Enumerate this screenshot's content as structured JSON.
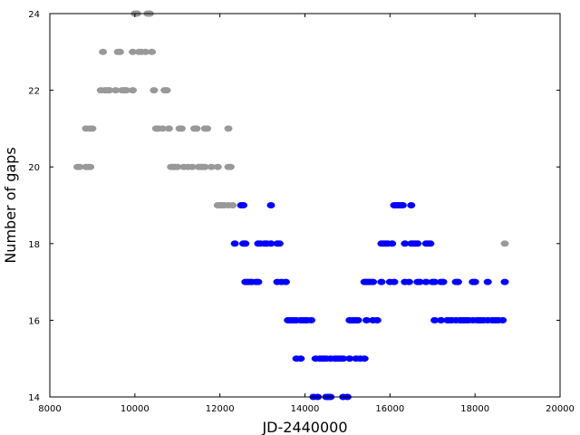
{
  "chart_data": {
    "type": "scatter",
    "title": "",
    "xlabel": "JD-2440000",
    "ylabel": "Number of gaps",
    "xlim": [
      8000,
      20000
    ],
    "ylim": [
      14,
      24
    ],
    "xticks": [
      8000,
      10000,
      12000,
      14000,
      16000,
      18000,
      20000
    ],
    "yticks": [
      14,
      16,
      18,
      20,
      22,
      24
    ],
    "grid": false,
    "legend": "none",
    "series": [
      {
        "color": "#999999",
        "points": [
          [
            8650,
            20
          ],
          [
            8700,
            20
          ],
          [
            8850,
            20
          ],
          [
            8900,
            20
          ],
          [
            8950,
            20
          ],
          [
            8850,
            21
          ],
          [
            8950,
            21
          ],
          [
            9000,
            21
          ],
          [
            9200,
            22
          ],
          [
            9300,
            22
          ],
          [
            9350,
            22
          ],
          [
            9400,
            22
          ],
          [
            9550,
            22
          ],
          [
            9700,
            22
          ],
          [
            9750,
            22
          ],
          [
            9800,
            22
          ],
          [
            9950,
            22
          ],
          [
            9250,
            23
          ],
          [
            9600,
            23
          ],
          [
            9650,
            23
          ],
          [
            9950,
            23
          ],
          [
            10100,
            23
          ],
          [
            10150,
            23
          ],
          [
            10250,
            23
          ],
          [
            10400,
            23
          ],
          [
            10000,
            24
          ],
          [
            10050,
            24
          ],
          [
            10300,
            24
          ],
          [
            10350,
            24
          ],
          [
            10450,
            22
          ],
          [
            10700,
            22
          ],
          [
            10750,
            22
          ],
          [
            10500,
            21
          ],
          [
            10550,
            21
          ],
          [
            10650,
            21
          ],
          [
            10800,
            21
          ],
          [
            11050,
            21
          ],
          [
            11100,
            21
          ],
          [
            11400,
            21
          ],
          [
            11450,
            21
          ],
          [
            11650,
            21
          ],
          [
            11700,
            21
          ],
          [
            12200,
            21
          ],
          [
            10850,
            20
          ],
          [
            10900,
            20
          ],
          [
            10950,
            20
          ],
          [
            11000,
            20
          ],
          [
            11150,
            20
          ],
          [
            11250,
            20
          ],
          [
            11350,
            20
          ],
          [
            11500,
            20
          ],
          [
            11550,
            20
          ],
          [
            11600,
            20
          ],
          [
            11650,
            20
          ],
          [
            11800,
            20
          ],
          [
            11950,
            20
          ],
          [
            12200,
            20
          ],
          [
            12250,
            20
          ],
          [
            11950,
            19
          ],
          [
            12000,
            19
          ],
          [
            12050,
            19
          ],
          [
            12100,
            19
          ],
          [
            12200,
            19
          ],
          [
            12300,
            19
          ],
          [
            18700,
            18
          ]
        ]
      },
      {
        "color": "#0000ff",
        "points": [
          [
            12500,
            19
          ],
          [
            12550,
            19
          ],
          [
            13200,
            19
          ],
          [
            12350,
            18
          ],
          [
            12550,
            18
          ],
          [
            12600,
            18
          ],
          [
            12900,
            18
          ],
          [
            12950,
            18
          ],
          [
            13050,
            18
          ],
          [
            13100,
            18
          ],
          [
            13200,
            18
          ],
          [
            13350,
            18
          ],
          [
            13400,
            18
          ],
          [
            12600,
            17
          ],
          [
            12650,
            17
          ],
          [
            12700,
            17
          ],
          [
            12750,
            17
          ],
          [
            12850,
            17
          ],
          [
            12900,
            17
          ],
          [
            13350,
            17
          ],
          [
            13450,
            17
          ],
          [
            13550,
            17
          ],
          [
            13600,
            16
          ],
          [
            13650,
            16
          ],
          [
            13700,
            16
          ],
          [
            13750,
            16
          ],
          [
            13800,
            16
          ],
          [
            13900,
            16
          ],
          [
            13950,
            16
          ],
          [
            14000,
            16
          ],
          [
            14050,
            16
          ],
          [
            14150,
            16
          ],
          [
            13800,
            15
          ],
          [
            13900,
            15
          ],
          [
            14250,
            15
          ],
          [
            14350,
            15
          ],
          [
            14400,
            15
          ],
          [
            14450,
            15
          ],
          [
            14500,
            15
          ],
          [
            14600,
            15
          ],
          [
            14700,
            15
          ],
          [
            14750,
            15
          ],
          [
            14800,
            15
          ],
          [
            14850,
            15
          ],
          [
            14900,
            15
          ],
          [
            15050,
            15
          ],
          [
            15200,
            15
          ],
          [
            15300,
            15
          ],
          [
            15400,
            15
          ],
          [
            14200,
            14
          ],
          [
            14300,
            14
          ],
          [
            14500,
            14
          ],
          [
            14550,
            14
          ],
          [
            14600,
            14
          ],
          [
            14900,
            14
          ],
          [
            15000,
            14
          ],
          [
            15050,
            16
          ],
          [
            15100,
            16
          ],
          [
            15150,
            16
          ],
          [
            15200,
            16
          ],
          [
            15250,
            16
          ],
          [
            15450,
            16
          ],
          [
            15600,
            16
          ],
          [
            15700,
            16
          ],
          [
            15400,
            17
          ],
          [
            15450,
            17
          ],
          [
            15500,
            17
          ],
          [
            15550,
            17
          ],
          [
            15600,
            17
          ],
          [
            15800,
            17
          ],
          [
            16000,
            17
          ],
          [
            16100,
            17
          ],
          [
            16350,
            17
          ],
          [
            16450,
            17
          ],
          [
            16650,
            17
          ],
          [
            16700,
            17
          ],
          [
            16850,
            17
          ],
          [
            17000,
            17
          ],
          [
            17050,
            17
          ],
          [
            17200,
            17
          ],
          [
            17250,
            17
          ],
          [
            17550,
            17
          ],
          [
            17600,
            17
          ],
          [
            17950,
            17
          ],
          [
            18000,
            17
          ],
          [
            18300,
            17
          ],
          [
            18700,
            17
          ],
          [
            15800,
            18
          ],
          [
            15850,
            18
          ],
          [
            15900,
            18
          ],
          [
            15950,
            18
          ],
          [
            16050,
            18
          ],
          [
            16350,
            18
          ],
          [
            16500,
            18
          ],
          [
            16550,
            18
          ],
          [
            16600,
            18
          ],
          [
            16650,
            18
          ],
          [
            16850,
            18
          ],
          [
            16900,
            18
          ],
          [
            16950,
            18
          ],
          [
            16100,
            19
          ],
          [
            16150,
            19
          ],
          [
            16200,
            19
          ],
          [
            16250,
            19
          ],
          [
            16300,
            19
          ],
          [
            16500,
            19
          ],
          [
            17050,
            16
          ],
          [
            17200,
            16
          ],
          [
            17350,
            16
          ],
          [
            17400,
            16
          ],
          [
            17450,
            16
          ],
          [
            17550,
            16
          ],
          [
            17650,
            16
          ],
          [
            17700,
            16
          ],
          [
            17750,
            16
          ],
          [
            17800,
            16
          ],
          [
            17850,
            16
          ],
          [
            17950,
            16
          ],
          [
            18050,
            16
          ],
          [
            18100,
            16
          ],
          [
            18150,
            16
          ],
          [
            18200,
            16
          ],
          [
            18300,
            16
          ],
          [
            18400,
            16
          ],
          [
            18450,
            16
          ],
          [
            18500,
            16
          ],
          [
            18550,
            16
          ],
          [
            18650,
            16
          ]
        ]
      }
    ]
  }
}
